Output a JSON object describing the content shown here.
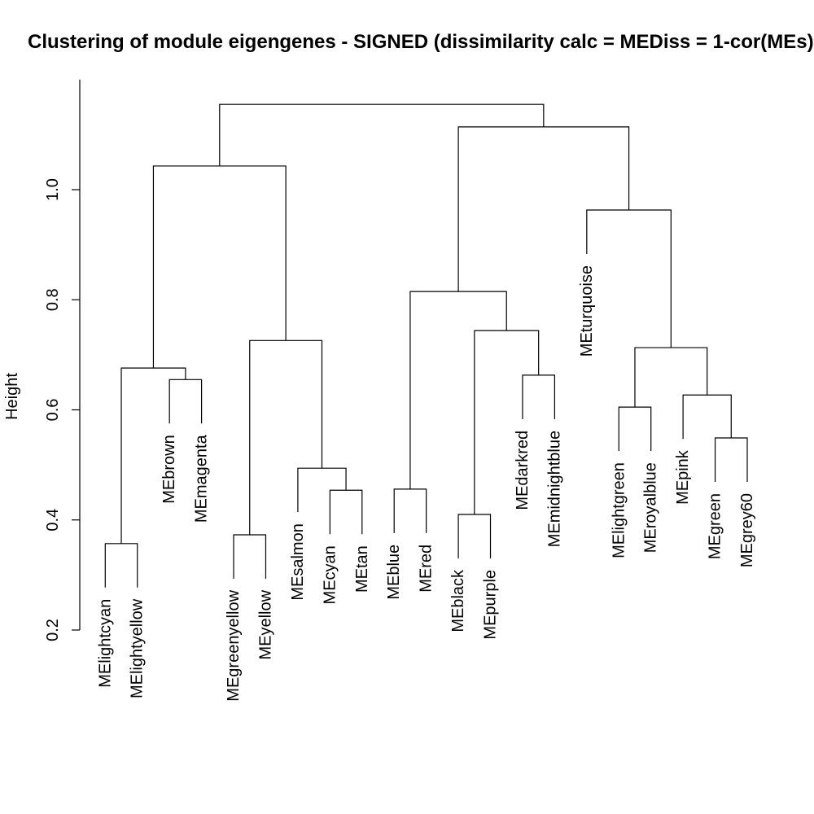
{
  "chart_data": {
    "type": "dendrogram",
    "title": "Clustering of module eigengenes - SIGNED (dissimilarity calc = MEDiss = 1-cor(MEs)",
    "ylabel": "Height",
    "ylim": [
      0.2,
      1.2
    ],
    "yticks": [
      0.2,
      0.4,
      0.6,
      0.8,
      1.0
    ],
    "ytick_labels": [
      "0.2",
      "0.4",
      "0.6",
      "0.8",
      "1.0"
    ],
    "grid": false,
    "colors": {
      "line": "#000000",
      "text": "#000000",
      "background": "#ffffff"
    },
    "tree": {
      "height": 1.155,
      "children": [
        {
          "height": 1.043,
          "children": [
            {
              "height": 0.676,
              "children": [
                {
                  "height": 0.357,
                  "children": [
                    {
                      "label": "MElightcyan"
                    },
                    {
                      "label": "MElightyellow"
                    }
                  ]
                },
                {
                  "height": 0.655,
                  "children": [
                    {
                      "label": "MEbrown"
                    },
                    {
                      "label": "MEmagenta"
                    }
                  ]
                }
              ]
            },
            {
              "height": 0.726,
              "children": [
                {
                  "height": 0.373,
                  "children": [
                    {
                      "label": "MEgreenyellow"
                    },
                    {
                      "label": "MEyellow"
                    }
                  ]
                },
                {
                  "height": 0.494,
                  "children": [
                    {
                      "label": "MEsalmon"
                    },
                    {
                      "height": 0.454,
                      "children": [
                        {
                          "label": "MEcyan"
                        },
                        {
                          "label": "MEtan"
                        }
                      ]
                    }
                  ]
                }
              ]
            }
          ]
        },
        {
          "height": 1.114,
          "children": [
            {
              "height": 0.815,
              "children": [
                {
                  "height": 0.456,
                  "children": [
                    {
                      "label": "MEblue"
                    },
                    {
                      "label": "MEred"
                    }
                  ]
                },
                {
                  "height": 0.744,
                  "children": [
                    {
                      "height": 0.41,
                      "children": [
                        {
                          "label": "MEblack"
                        },
                        {
                          "label": "MEpurple"
                        }
                      ]
                    },
                    {
                      "height": 0.663,
                      "children": [
                        {
                          "label": "MEdarkred"
                        },
                        {
                          "label": "MEmidnightblue"
                        }
                      ]
                    }
                  ]
                }
              ]
            },
            {
              "height": 0.963,
              "children": [
                {
                  "label": "MEturquoise"
                },
                {
                  "height": 0.713,
                  "children": [
                    {
                      "height": 0.605,
                      "children": [
                        {
                          "label": "MElightgreen"
                        },
                        {
                          "label": "MEroyalblue"
                        }
                      ]
                    },
                    {
                      "height": 0.627,
                      "children": [
                        {
                          "label": "MEpink"
                        },
                        {
                          "height": 0.549,
                          "children": [
                            {
                              "label": "MEgreen"
                            },
                            {
                              "label": "MEgrey60"
                            }
                          ]
                        }
                      ]
                    }
                  ]
                }
              ]
            }
          ]
        }
      ]
    }
  }
}
